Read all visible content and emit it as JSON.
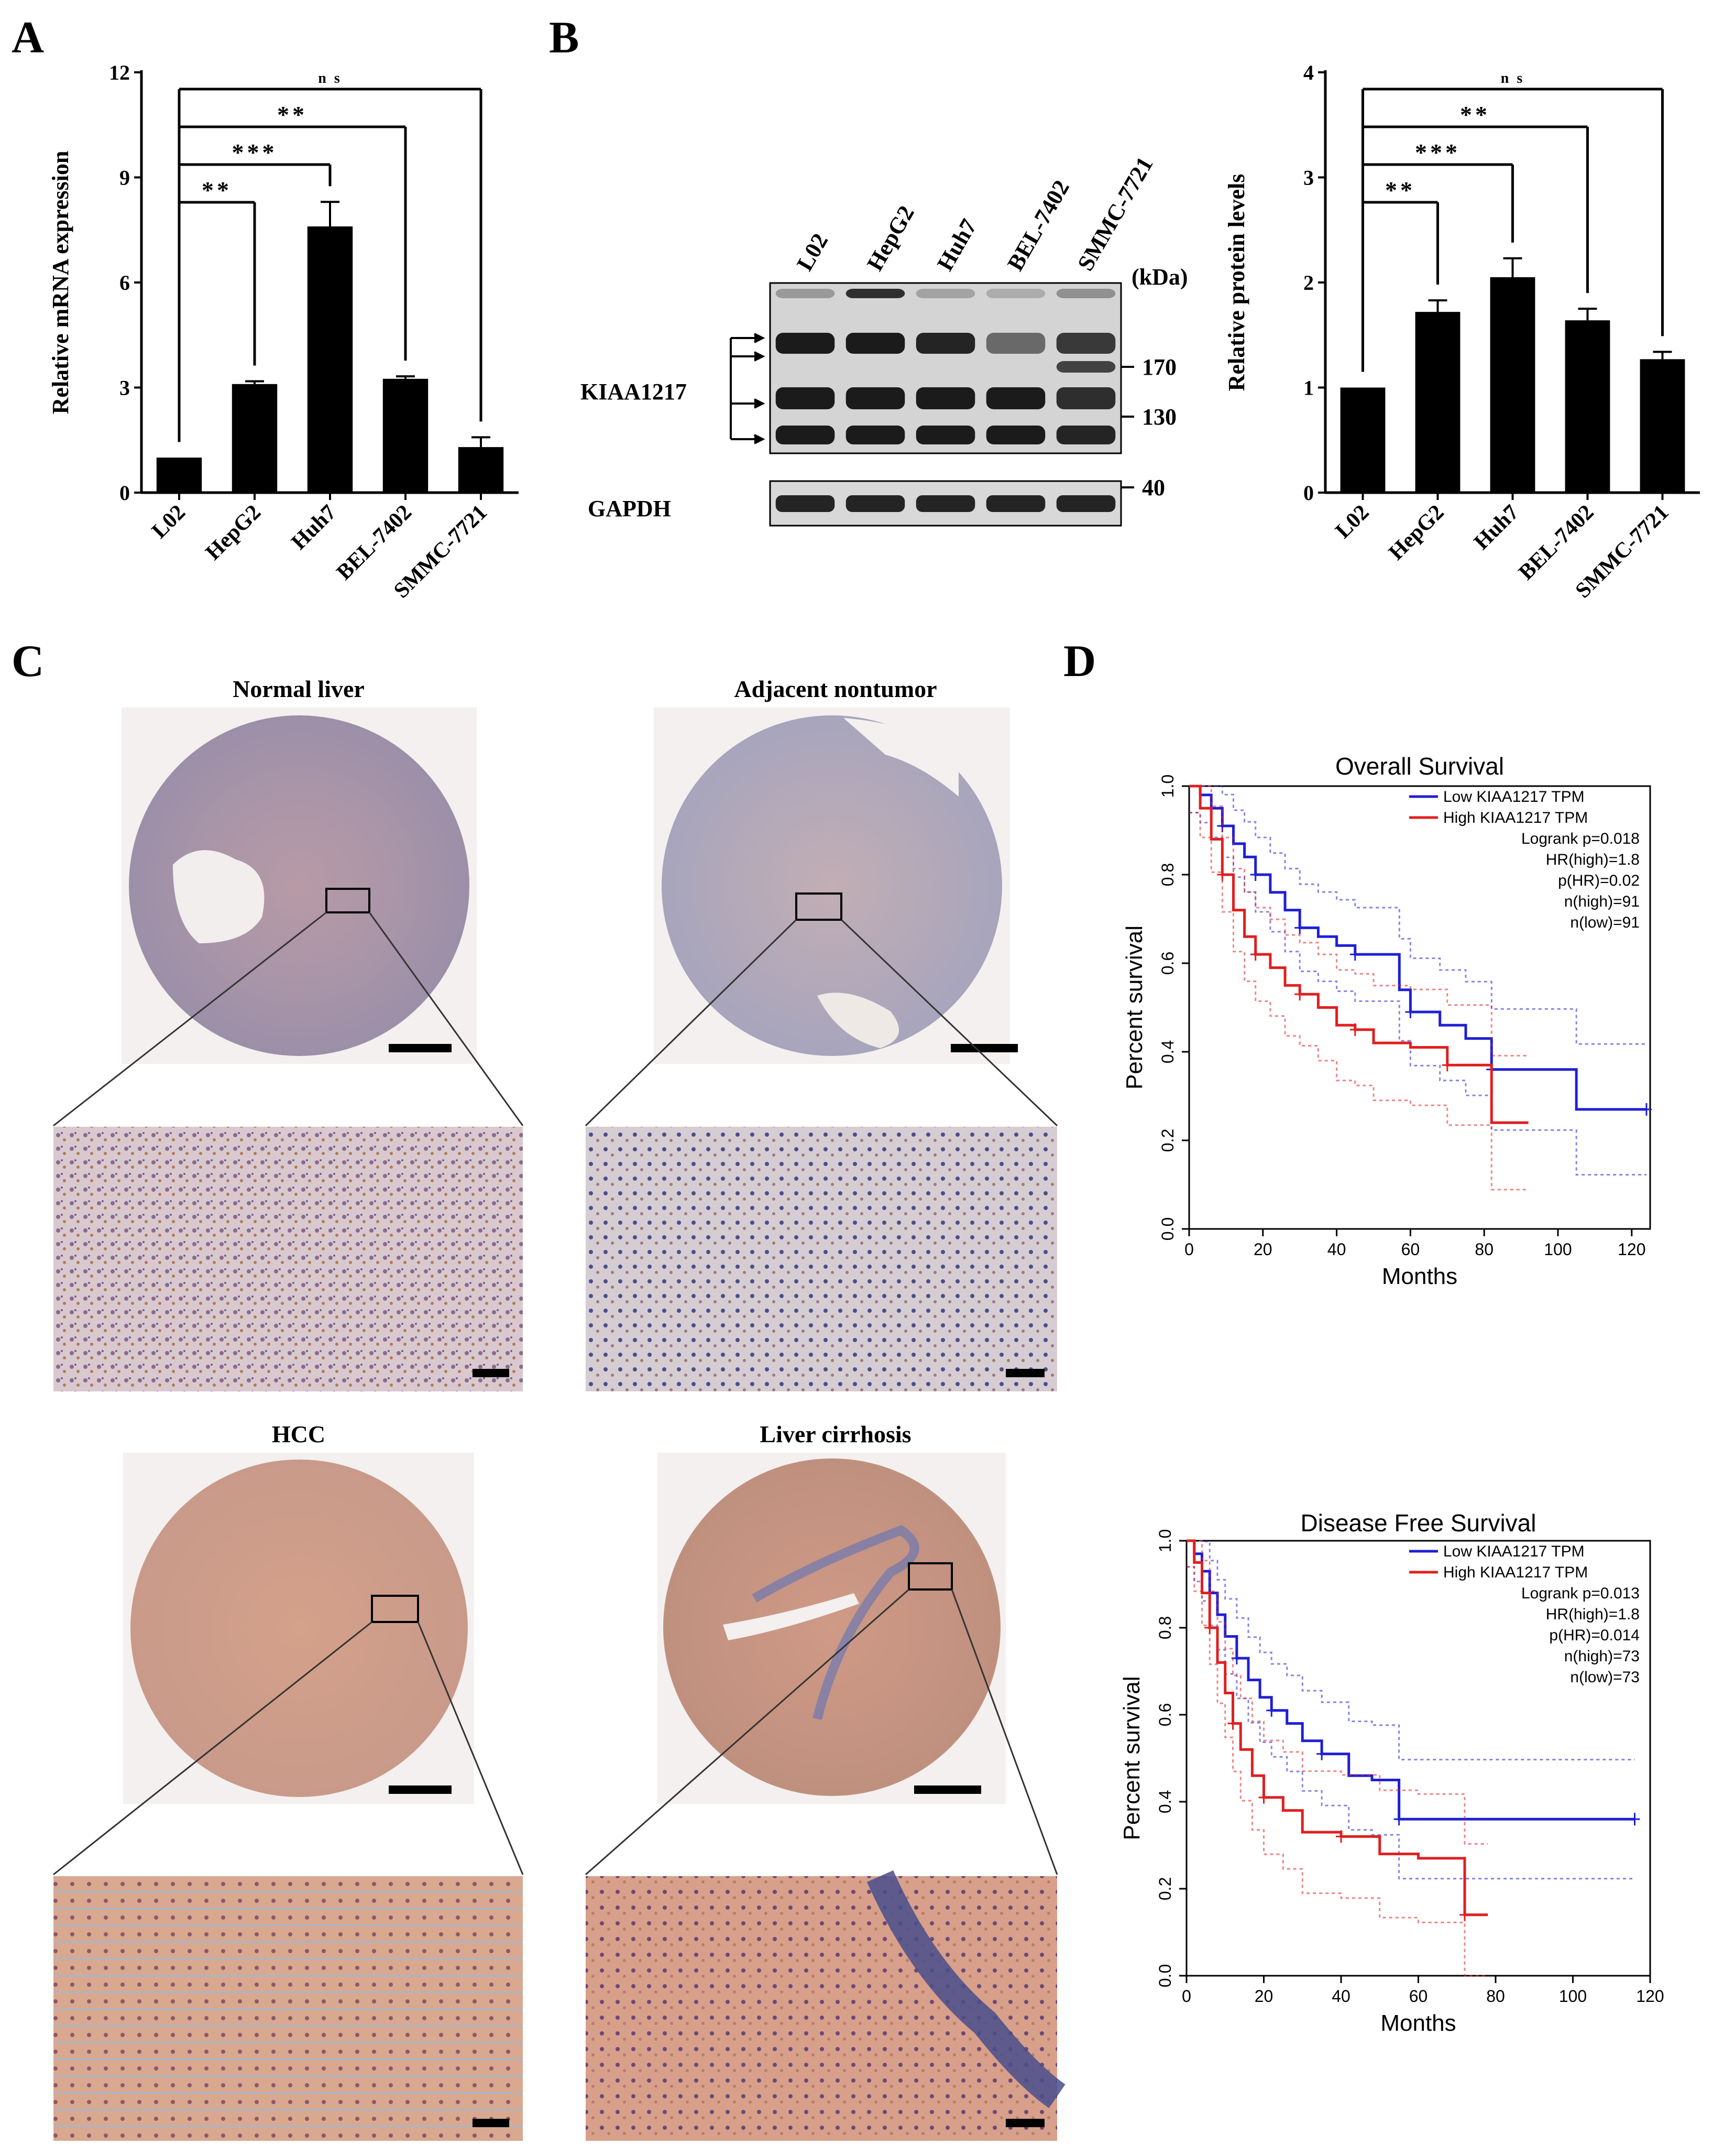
{
  "panels": {
    "a": {
      "letter": "A"
    },
    "b": {
      "letter": "B"
    },
    "c": {
      "letter": "C"
    },
    "d": {
      "letter": "D"
    }
  },
  "chart_data": [
    {
      "type": "bar",
      "categories": [
        "L02",
        "HepG2",
        "Huh7",
        "BEL-7402",
        "SMMC-7721"
      ],
      "values": [
        1.0,
        3.1,
        7.6,
        3.25,
        1.3
      ],
      "errors": [
        0.0,
        0.08,
        0.7,
        0.07,
        0.28
      ],
      "ylabel": "Relative mRNA expression",
      "ylim": [
        0,
        12
      ],
      "yticks": [
        "0",
        "3",
        "6",
        "9",
        "12"
      ],
      "significance": [
        {
          "to": "HepG2",
          "text": "**"
        },
        {
          "to": "Huh7",
          "text": "***"
        },
        {
          "to": "BEL-7402",
          "text": "**"
        },
        {
          "to": "SMMC-7721",
          "text": "n s"
        }
      ],
      "bar_color": "#000000"
    },
    {
      "type": "bar",
      "categories": [
        "L02",
        "HepG2",
        "Huh7",
        "BEL-7402",
        "SMMC-7721"
      ],
      "values": [
        1.0,
        1.72,
        2.05,
        1.64,
        1.27
      ],
      "errors": [
        0.0,
        0.11,
        0.18,
        0.11,
        0.07
      ],
      "ylabel": "Relative protein levels",
      "ylim": [
        0,
        4
      ],
      "yticks": [
        "0",
        "1",
        "2",
        "3",
        "4"
      ],
      "significance": [
        {
          "to": "HepG2",
          "text": "**"
        },
        {
          "to": "Huh7",
          "text": "***"
        },
        {
          "to": "BEL-7402",
          "text": "**"
        },
        {
          "to": "SMMC-7721",
          "text": "n s"
        }
      ],
      "bar_color": "#000000"
    },
    {
      "type": "line",
      "title": "Overall Survival",
      "xlabel": "Months",
      "ylabel": "Percent survival",
      "xlim": [
        0,
        125
      ],
      "ylim": [
        0,
        1.0
      ],
      "xticks": [
        "0",
        "20",
        "40",
        "60",
        "80",
        "100",
        "120"
      ],
      "yticks": [
        "0.0",
        "0.2",
        "0.4",
        "0.6",
        "0.8",
        "1.0"
      ],
      "legend": [
        "Low KIAA1217 TPM",
        "High KIAA1217 TPM",
        "Logrank p=0.018",
        "HR(high)=1.8",
        "p(HR)=0.02",
        "n(high)=91",
        "n(low)=91"
      ],
      "series": [
        {
          "name": "Low KIAA1217 TPM",
          "color": "#1f1fd6",
          "x": [
            0,
            3,
            6,
            9,
            12,
            15,
            18,
            22,
            26,
            30,
            35,
            40,
            45,
            50,
            57,
            60,
            68,
            75,
            82,
            90,
            105,
            124
          ],
          "y": [
            1.0,
            0.98,
            0.95,
            0.91,
            0.87,
            0.84,
            0.8,
            0.76,
            0.72,
            0.68,
            0.66,
            0.64,
            0.62,
            0.62,
            0.54,
            0.49,
            0.46,
            0.43,
            0.36,
            0.36,
            0.27,
            0.27
          ]
        },
        {
          "name": "High KIAA1217 TPM",
          "color": "#e01f1f",
          "x": [
            0,
            3,
            6,
            9,
            12,
            15,
            18,
            22,
            26,
            30,
            35,
            40,
            45,
            50,
            60,
            70,
            82,
            92
          ],
          "y": [
            1.0,
            0.95,
            0.88,
            0.8,
            0.72,
            0.66,
            0.62,
            0.59,
            0.55,
            0.53,
            0.5,
            0.46,
            0.45,
            0.42,
            0.41,
            0.37,
            0.24,
            0.24
          ]
        }
      ]
    },
    {
      "type": "line",
      "title": "Disease Free Survival",
      "xlabel": "Months",
      "ylabel": "Percent survival",
      "xlim": [
        0,
        120
      ],
      "ylim": [
        0,
        1.0
      ],
      "xticks": [
        "0",
        "20",
        "40",
        "60",
        "80",
        "100",
        "120"
      ],
      "yticks": [
        "0.0",
        "0.2",
        "0.4",
        "0.6",
        "0.8",
        "1.0"
      ],
      "legend": [
        "Low KIAA1217 TPM",
        "High KIAA1217 TPM",
        "Logrank p=0.013",
        "HR(high)=1.8",
        "p(HR)=0.014",
        "n(high)=73",
        "n(low)=73"
      ],
      "series": [
        {
          "name": "Low KIAA1217 TPM",
          "color": "#1f1fd6",
          "x": [
            0,
            2,
            4,
            6,
            8,
            10,
            13,
            16,
            19,
            22,
            26,
            30,
            35,
            42,
            48,
            55,
            70,
            90,
            116
          ],
          "y": [
            1.0,
            0.97,
            0.93,
            0.88,
            0.83,
            0.78,
            0.73,
            0.68,
            0.64,
            0.61,
            0.58,
            0.54,
            0.51,
            0.46,
            0.45,
            0.36,
            0.36,
            0.36,
            0.36
          ]
        },
        {
          "name": "High KIAA1217 TPM",
          "color": "#e01f1f",
          "x": [
            0,
            2,
            4,
            6,
            8,
            10,
            12,
            14,
            17,
            20,
            25,
            30,
            40,
            50,
            60,
            72,
            78
          ],
          "y": [
            1.0,
            0.95,
            0.88,
            0.8,
            0.72,
            0.65,
            0.58,
            0.52,
            0.46,
            0.41,
            0.38,
            0.33,
            0.32,
            0.28,
            0.27,
            0.14,
            0.14
          ]
        }
      ]
    }
  ],
  "western": {
    "lanes": [
      "L02",
      "HepG2",
      "Huh7",
      "BEL-7402",
      "SMMC-7721"
    ],
    "unit": "(kDa)",
    "markers": [
      "170",
      "130",
      "40"
    ],
    "proteins": [
      "KIAA1217",
      "GAPDH"
    ]
  },
  "ihc": {
    "titles": [
      "Normal liver",
      "Adjacent nontumor",
      "HCC",
      "Liver cirrhosis"
    ]
  }
}
